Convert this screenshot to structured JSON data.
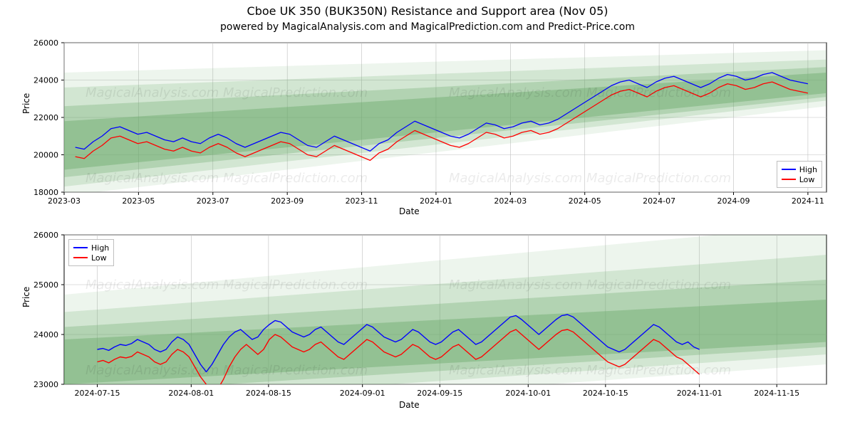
{
  "title": "Cboe UK 350 (BUK350N) Resistance and Support area (Nov 05)",
  "subtitle": "powered by MagicalAnalysis.com and MagicalPrediction.com and Predict-Price.com",
  "background_color": "#ffffff",
  "colors": {
    "high": "#0000ff",
    "low": "#ff0000",
    "band_fill": "#6aaa6a",
    "grid": "#bfbfbf",
    "axis": "#000000"
  },
  "watermark": "MagicalAnalysis.com   MagicalPrediction.com",
  "panel1": {
    "type": "line",
    "x_label": "Date",
    "y_label": "Price",
    "ylim": [
      18000,
      26000
    ],
    "yticks": [
      18000,
      20000,
      22000,
      24000,
      26000
    ],
    "xtick_labels": [
      "2023-03",
      "2023-05",
      "2023-07",
      "2023-09",
      "2023-11",
      "2024-01",
      "2024-03",
      "2024-05",
      "2024-07",
      "2024-09",
      "2024-11"
    ],
    "xtick_positions": [
      0,
      2,
      4,
      6,
      8,
      10,
      12,
      14,
      16,
      18,
      20
    ],
    "x_range": [
      0,
      20.5
    ],
    "line_width": 1.3,
    "band_opacities": [
      0.12,
      0.2,
      0.3,
      0.42
    ],
    "bands": [
      {
        "y0_start": 17800,
        "y1_start": 24400,
        "y0_end": 22600,
        "y1_end": 25600
      },
      {
        "y0_start": 18300,
        "y1_start": 23600,
        "y0_end": 22900,
        "y1_end": 25100
      },
      {
        "y0_start": 18800,
        "y1_start": 22600,
        "y0_end": 23100,
        "y1_end": 24700
      },
      {
        "y0_start": 19200,
        "y1_start": 21800,
        "y0_end": 23300,
        "y1_end": 24400
      }
    ],
    "high": [
      20400,
      20300,
      20700,
      21000,
      21400,
      21500,
      21300,
      21100,
      21200,
      21000,
      20800,
      20700,
      20900,
      20700,
      20600,
      20900,
      21100,
      20900,
      20600,
      20400,
      20600,
      20800,
      21000,
      21200,
      21100,
      20800,
      20500,
      20400,
      20700,
      21000,
      20800,
      20600,
      20400,
      20200,
      20600,
      20800,
      21200,
      21500,
      21800,
      21600,
      21400,
      21200,
      21000,
      20900,
      21100,
      21400,
      21700,
      21600,
      21400,
      21500,
      21700,
      21800,
      21600,
      21700,
      21900,
      22200,
      22500,
      22800,
      23100,
      23400,
      23700,
      23900,
      24000,
      23800,
      23600,
      23900,
      24100,
      24200,
      24000,
      23800,
      23600,
      23800,
      24100,
      24300,
      24200,
      24000,
      24100,
      24300,
      24400,
      24200,
      24000,
      23900,
      23800
    ],
    "low": [
      19900,
      19800,
      20200,
      20500,
      20900,
      21000,
      20800,
      20600,
      20700,
      20500,
      20300,
      20200,
      20400,
      20200,
      20100,
      20400,
      20600,
      20400,
      20100,
      19900,
      20100,
      20300,
      20500,
      20700,
      20600,
      20300,
      20000,
      19900,
      20200,
      20500,
      20300,
      20100,
      19900,
      19700,
      20100,
      20300,
      20700,
      21000,
      21300,
      21100,
      20900,
      20700,
      20500,
      20400,
      20600,
      20900,
      21200,
      21100,
      20900,
      21000,
      21200,
      21300,
      21100,
      21200,
      21400,
      21700,
      22000,
      22300,
      22600,
      22900,
      23200,
      23400,
      23500,
      23300,
      23100,
      23400,
      23600,
      23700,
      23500,
      23300,
      23100,
      23300,
      23600,
      23800,
      23700,
      23500,
      23600,
      23800,
      23900,
      23700,
      23500,
      23400,
      23300
    ],
    "legend": {
      "position": "bottom-right",
      "items": [
        {
          "label": "High",
          "color_key": "high"
        },
        {
          "label": "Low",
          "color_key": "low"
        }
      ]
    }
  },
  "panel2": {
    "type": "line",
    "x_label": "Date",
    "y_label": "Price",
    "ylim": [
      23000,
      26000
    ],
    "yticks": [
      23000,
      24000,
      25000,
      26000
    ],
    "xtick_labels": [
      "2024-07-15",
      "2024-08-01",
      "2024-08-15",
      "2024-09-01",
      "2024-09-15",
      "2024-10-01",
      "2024-10-15",
      "2024-11-01",
      "2024-11-15"
    ],
    "xtick_positions": [
      0,
      17,
      31,
      48,
      62,
      78,
      92,
      109,
      123
    ],
    "x_range": [
      -6,
      132
    ],
    "line_width": 1.4,
    "band_opacities": [
      0.12,
      0.2,
      0.3,
      0.42
    ],
    "bands": [
      {
        "y0_start": 22300,
        "y1_start": 24800,
        "y0_end": 23400,
        "y1_end": 26200
      },
      {
        "y0_start": 22550,
        "y1_start": 24450,
        "y0_end": 23600,
        "y1_end": 25600
      },
      {
        "y0_start": 22800,
        "y1_start": 24150,
        "y0_end": 23750,
        "y1_end": 25100
      },
      {
        "y0_start": 23000,
        "y1_start": 23900,
        "y0_end": 23850,
        "y1_end": 24700
      }
    ],
    "high": [
      23700,
      23720,
      23680,
      23750,
      23800,
      23780,
      23820,
      23900,
      23850,
      23800,
      23700,
      23650,
      23700,
      23850,
      23950,
      23900,
      23800,
      23600,
      23400,
      23250,
      23400,
      23600,
      23800,
      23950,
      24050,
      24100,
      24000,
      23900,
      23950,
      24100,
      24200,
      24280,
      24250,
      24150,
      24050,
      24000,
      23950,
      24000,
      24100,
      24150,
      24050,
      23950,
      23850,
      23800,
      23900,
      24000,
      24100,
      24200,
      24150,
      24050,
      23950,
      23900,
      23850,
      23900,
      24000,
      24100,
      24050,
      23950,
      23850,
      23800,
      23850,
      23950,
      24050,
      24100,
      24000,
      23900,
      23800,
      23850,
      23950,
      24050,
      24150,
      24250,
      24350,
      24380,
      24300,
      24200,
      24100,
      24000,
      24100,
      24200,
      24300,
      24380,
      24400,
      24350,
      24250,
      24150,
      24050,
      23950,
      23850,
      23750,
      23700,
      23650,
      23700,
      23800,
      23900,
      24000,
      24100,
      24200,
      24150,
      24050,
      23950,
      23850,
      23800,
      23850,
      23750,
      23700
    ],
    "low": [
      23450,
      23480,
      23430,
      23500,
      23550,
      23530,
      23560,
      23650,
      23600,
      23550,
      23450,
      23400,
      23450,
      23600,
      23700,
      23650,
      23550,
      23350,
      23150,
      23000,
      22750,
      22900,
      23100,
      23350,
      23550,
      23700,
      23800,
      23700,
      23600,
      23700,
      23900,
      24000,
      23950,
      23850,
      23750,
      23700,
      23650,
      23700,
      23800,
      23850,
      23750,
      23650,
      23550,
      23500,
      23600,
      23700,
      23800,
      23900,
      23850,
      23750,
      23650,
      23600,
      23550,
      23600,
      23700,
      23800,
      23750,
      23650,
      23550,
      23500,
      23550,
      23650,
      23750,
      23800,
      23700,
      23600,
      23500,
      23550,
      23650,
      23750,
      23850,
      23950,
      24050,
      24100,
      24000,
      23900,
      23800,
      23700,
      23800,
      23900,
      24000,
      24080,
      24100,
      24050,
      23950,
      23850,
      23750,
      23650,
      23550,
      23450,
      23400,
      23350,
      23400,
      23500,
      23600,
      23700,
      23800,
      23900,
      23850,
      23750,
      23650,
      23550,
      23500,
      23400,
      23300,
      23200
    ],
    "legend": {
      "position": "top-left",
      "items": [
        {
          "label": "High",
          "color_key": "high"
        },
        {
          "label": "Low",
          "color_key": "low"
        }
      ]
    }
  }
}
